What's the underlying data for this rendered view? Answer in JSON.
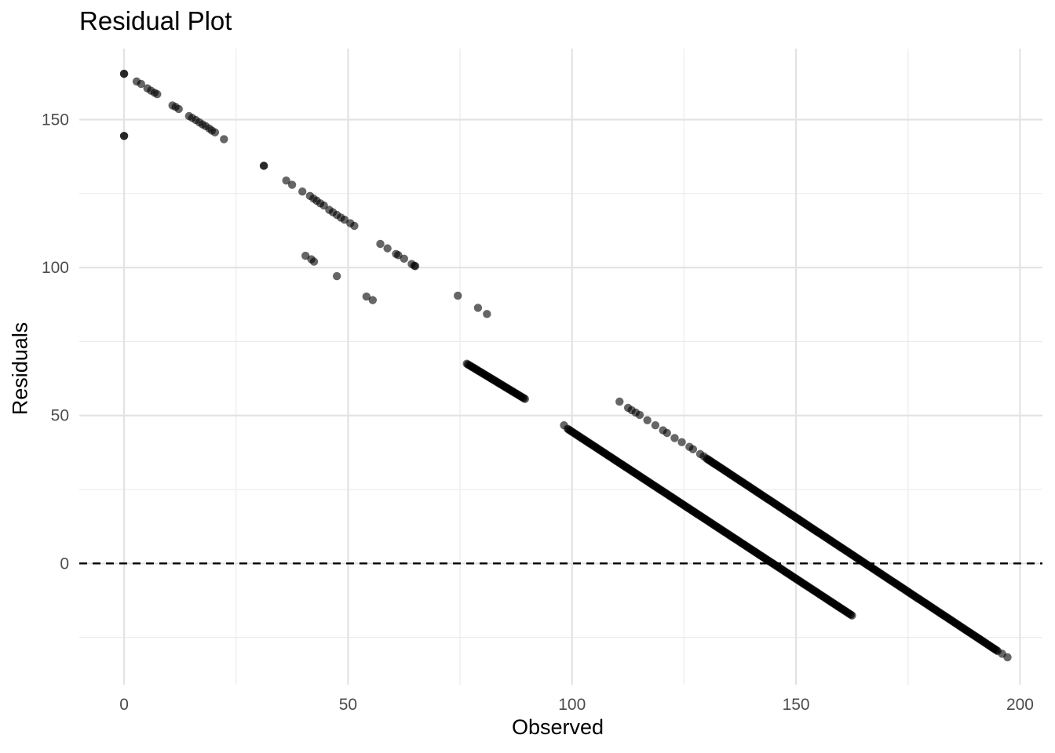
{
  "chart_data": {
    "type": "scatter",
    "title": "Residual Plot",
    "xlabel": "Observed",
    "ylabel": "Residuals",
    "xlim": [
      -10,
      205
    ],
    "ylim": [
      -41,
      174
    ],
    "x_ticks": [
      0,
      50,
      100,
      150,
      200
    ],
    "x_tick_labels": [
      "0",
      "50",
      "100",
      "150",
      "200"
    ],
    "y_ticks": [
      0,
      50,
      100,
      150
    ],
    "y_tick_labels": [
      "0",
      "50",
      "100",
      "150"
    ],
    "grid": true,
    "reference_line": {
      "y": 0,
      "style": "dashed",
      "color": "#000000"
    },
    "point_color": "#000000",
    "point_opacity": 0.6,
    "series": [
      {
        "name": "points",
        "points": [
          [
            0,
            165.5
          ],
          [
            0,
            165.5
          ],
          [
            0,
            144.5
          ],
          [
            0,
            144.5
          ],
          [
            2.8,
            162.9
          ],
          [
            3.8,
            162.1
          ],
          [
            5.2,
            160.6
          ],
          [
            6,
            159.8
          ],
          [
            6.8,
            159.1
          ],
          [
            7.4,
            158.6
          ],
          [
            10.8,
            154.8
          ],
          [
            11.5,
            154.3
          ],
          [
            12.2,
            153.6
          ],
          [
            14.5,
            151.2
          ],
          [
            15.2,
            150.6
          ],
          [
            16,
            149.9
          ],
          [
            16.8,
            149.1
          ],
          [
            17.5,
            148.4
          ],
          [
            18.2,
            147.8
          ],
          [
            19,
            147
          ],
          [
            19.6,
            146.3
          ],
          [
            20.3,
            145.7
          ],
          [
            22.3,
            143.4
          ],
          [
            31.2,
            134.4
          ],
          [
            31.2,
            134.4
          ],
          [
            36.2,
            129.4
          ],
          [
            37.5,
            128
          ],
          [
            39.8,
            125.7
          ],
          [
            41.5,
            124.2
          ],
          [
            42.3,
            123.3
          ],
          [
            43,
            122.6
          ],
          [
            43.8,
            121.7
          ],
          [
            44.6,
            121
          ],
          [
            45.8,
            119.5
          ],
          [
            46.6,
            118.7
          ],
          [
            47.5,
            117.8
          ],
          [
            48.4,
            116.9
          ],
          [
            49.2,
            116.2
          ],
          [
            50.5,
            115
          ],
          [
            51.4,
            114.1
          ],
          [
            40.5,
            104
          ],
          [
            41.8,
            102.8
          ],
          [
            42.4,
            102
          ],
          [
            47.5,
            97.1
          ],
          [
            57.2,
            108
          ],
          [
            58.8,
            106.5
          ],
          [
            60.7,
            104.6
          ],
          [
            61.2,
            104.2
          ],
          [
            62.5,
            103
          ],
          [
            64.2,
            101.2
          ],
          [
            64.8,
            100.6
          ],
          [
            65,
            100.5
          ],
          [
            54.1,
            90.2
          ],
          [
            55.5,
            89
          ],
          [
            74.5,
            90.5
          ],
          [
            79,
            86.4
          ],
          [
            81,
            84.3
          ],
          [
            98.2,
            46.7
          ],
          [
            110.6,
            54.7
          ],
          [
            112.5,
            52.6
          ],
          [
            113.3,
            51.8
          ],
          [
            114.2,
            51
          ],
          [
            115.1,
            50.2
          ],
          [
            116.8,
            48.4
          ],
          [
            118.6,
            46.7
          ],
          [
            120.3,
            45
          ],
          [
            121.2,
            44.1
          ],
          [
            122.9,
            42.4
          ],
          [
            124.5,
            41
          ],
          [
            126.2,
            39.4
          ],
          [
            127,
            38.6
          ],
          [
            128.6,
            37
          ],
          [
            129.4,
            36.2
          ],
          [
            197.2,
            -31.7
          ],
          [
            196,
            -30.5
          ]
        ]
      }
    ],
    "line_segments": [
      {
        "x_start": 76.5,
        "x_end": 89.5,
        "y_start": 67.5,
        "y_end": 55.6
      },
      {
        "x_start": 99,
        "x_end": 162.5,
        "y_start": 45.5,
        "y_end": -17.6
      },
      {
        "x_start": 130,
        "x_end": 195,
        "y_start": 35.5,
        "y_end": -29.6
      }
    ]
  }
}
